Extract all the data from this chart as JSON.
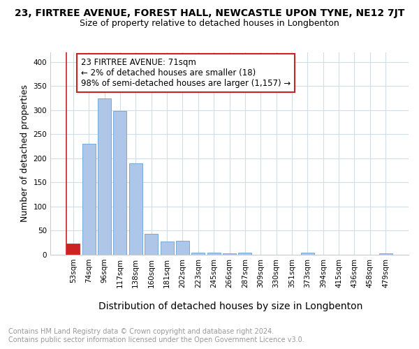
{
  "title_line1": "23, FIRTREE AVENUE, FOREST HALL, NEWCASTLE UPON TYNE, NE12 7JT",
  "title_line2": "Size of property relative to detached houses in Longbenton",
  "xlabel": "Distribution of detached houses by size in Longbenton",
  "ylabel": "Number of detached properties",
  "categories": [
    "53sqm",
    "74sqm",
    "96sqm",
    "117sqm",
    "138sqm",
    "160sqm",
    "181sqm",
    "202sqm",
    "223sqm",
    "245sqm",
    "266sqm",
    "287sqm",
    "309sqm",
    "330sqm",
    "351sqm",
    "373sqm",
    "394sqm",
    "415sqm",
    "436sqm",
    "458sqm",
    "479sqm"
  ],
  "values": [
    23,
    230,
    325,
    298,
    190,
    44,
    27,
    29,
    5,
    5,
    3,
    4,
    0,
    0,
    0,
    5,
    0,
    0,
    0,
    0,
    3
  ],
  "bar_color": "#aec6e8",
  "bar_edge_color": "#6aa0cc",
  "highlight_bar_index": 0,
  "highlight_bar_color": "#cc2222",
  "annotation_text": "23 FIRTREE AVENUE: 71sqm\n← 2% of detached houses are smaller (18)\n98% of semi-detached houses are larger (1,157) →",
  "annotation_box_color": "#cc2222",
  "ylim": [
    0,
    420
  ],
  "yticks": [
    0,
    50,
    100,
    150,
    200,
    250,
    300,
    350,
    400
  ],
  "footer_text": "Contains HM Land Registry data © Crown copyright and database right 2024.\nContains public sector information licensed under the Open Government Licence v3.0.",
  "bg_color": "#ffffff",
  "grid_color": "#d0dce8",
  "title_fontsize": 10,
  "subtitle_fontsize": 9,
  "axis_label_fontsize": 9,
  "xlabel_fontsize": 10,
  "tick_fontsize": 7.5,
  "footer_fontsize": 7,
  "annot_fontsize": 8.5
}
